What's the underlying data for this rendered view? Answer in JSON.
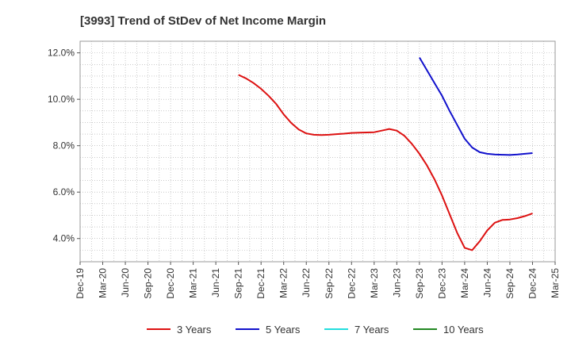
{
  "chart_data": {
    "type": "line",
    "title": "[3993]  Trend of StDev of Net Income Margin",
    "xlabel": "",
    "ylabel": "",
    "x_ticks": [
      "Dec-19",
      "Mar-20",
      "Jun-20",
      "Sep-20",
      "Dec-20",
      "Mar-21",
      "Jun-21",
      "Sep-21",
      "Dec-21",
      "Mar-22",
      "Jun-22",
      "Sep-22",
      "Dec-22",
      "Mar-23",
      "Jun-23",
      "Sep-23",
      "Dec-23",
      "Mar-24",
      "Jun-24",
      "Sep-24",
      "Dec-24",
      "Mar-25"
    ],
    "y_ticks": [
      "4.0%",
      "6.0%",
      "8.0%",
      "10.0%",
      "12.0%"
    ],
    "y_tick_values": [
      4,
      6,
      8,
      10,
      12
    ],
    "ylim": [
      3.0,
      12.5
    ],
    "grid": true,
    "legend_position": "bottom",
    "series": [
      {
        "name": "3 Years",
        "color": "#dd1111",
        "points": [
          [
            "Sep-21",
            11.05
          ],
          [
            "Oct-21",
            10.9
          ],
          [
            "Nov-21",
            10.7
          ],
          [
            "Dec-21",
            10.45
          ],
          [
            "Jan-22",
            10.15
          ],
          [
            "Feb-22",
            9.8
          ],
          [
            "Mar-22",
            9.35
          ],
          [
            "Apr-22",
            8.98
          ],
          [
            "May-22",
            8.7
          ],
          [
            "Jun-22",
            8.53
          ],
          [
            "Jul-22",
            8.47
          ],
          [
            "Aug-22",
            8.46
          ],
          [
            "Sep-22",
            8.47
          ],
          [
            "Oct-22",
            8.5
          ],
          [
            "Nov-22",
            8.52
          ],
          [
            "Dec-22",
            8.55
          ],
          [
            "Jan-23",
            8.56
          ],
          [
            "Feb-23",
            8.57
          ],
          [
            "Mar-23",
            8.58
          ],
          [
            "Apr-23",
            8.65
          ],
          [
            "May-23",
            8.72
          ],
          [
            "Jun-23",
            8.65
          ],
          [
            "Jul-23",
            8.43
          ],
          [
            "Aug-23",
            8.08
          ],
          [
            "Sep-23",
            7.65
          ],
          [
            "Oct-23",
            7.15
          ],
          [
            "Nov-23",
            6.55
          ],
          [
            "Dec-23",
            5.85
          ],
          [
            "Jan-24",
            5.05
          ],
          [
            "Feb-24",
            4.25
          ],
          [
            "Mar-24",
            3.6
          ],
          [
            "Apr-24",
            3.5
          ],
          [
            "May-24",
            3.88
          ],
          [
            "Jun-24",
            4.35
          ],
          [
            "Jul-24",
            4.68
          ],
          [
            "Aug-24",
            4.8
          ],
          [
            "Sep-24",
            4.82
          ],
          [
            "Oct-24",
            4.88
          ],
          [
            "Nov-24",
            4.97
          ],
          [
            "Dec-24",
            5.08
          ]
        ]
      },
      {
        "name": "5 Years",
        "color": "#1111cc",
        "points": [
          [
            "Sep-23",
            11.8
          ],
          [
            "Oct-23",
            11.25
          ],
          [
            "Nov-23",
            10.7
          ],
          [
            "Dec-23",
            10.15
          ],
          [
            "Jan-24",
            9.5
          ],
          [
            "Feb-24",
            8.9
          ],
          [
            "Mar-24",
            8.3
          ],
          [
            "Apr-24",
            7.92
          ],
          [
            "May-24",
            7.72
          ],
          [
            "Jun-24",
            7.65
          ],
          [
            "Jul-24",
            7.62
          ],
          [
            "Aug-24",
            7.61
          ],
          [
            "Sep-24",
            7.6
          ],
          [
            "Oct-24",
            7.62
          ],
          [
            "Nov-24",
            7.65
          ],
          [
            "Dec-24",
            7.68
          ]
        ]
      },
      {
        "name": "7 Years",
        "color": "#22dddd",
        "points": []
      },
      {
        "name": "10 Years",
        "color": "#228822",
        "points": []
      }
    ]
  }
}
